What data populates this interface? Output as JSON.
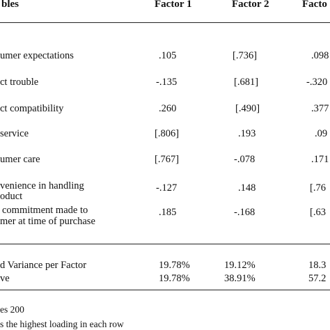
{
  "table": {
    "headers": {
      "variables": "bles",
      "factor1": "Factor 1",
      "factor2": "Factor 2",
      "factor3": "Facto"
    },
    "rows": [
      {
        "label": [
          "umer expectations"
        ],
        "f1": ".105",
        "f2": "[.736]",
        "f3": ".098"
      },
      {
        "label": [
          "ct trouble"
        ],
        "f1": "-.135",
        "f2": "[.681]",
        "f3": "-.320"
      },
      {
        "label": [
          "ct compatibility"
        ],
        "f1": ".260",
        "f2": "[.490]",
        "f3": ".377"
      },
      {
        "label": [
          "service"
        ],
        "f1": "[.806]",
        "f2": ".193",
        "f3": ".09"
      },
      {
        "label": [
          "umer care"
        ],
        "f1": "[.767]",
        "f2": "-.078",
        "f3": ".171"
      },
      {
        "label": [
          "venience in handling",
          "oduct"
        ],
        "f1": "-.127",
        "f2": ".148",
        "f3": "[.76"
      },
      {
        "label": [
          "commitment made to",
          "mer at time of purchase"
        ],
        "f1": ".185",
        "f2": "-.168",
        "f3": "[.63"
      }
    ],
    "summary": [
      {
        "label": "d Variance per Factor",
        "f1": "19.78%",
        "f2": "19.12%",
        "f3": "18.3"
      },
      {
        "label": "ve",
        "f1": "19.78%",
        "f2": "38.91%",
        "f3": "57.2"
      }
    ]
  },
  "notes": [
    "es 200",
    "s the highest loading in each row"
  ]
}
